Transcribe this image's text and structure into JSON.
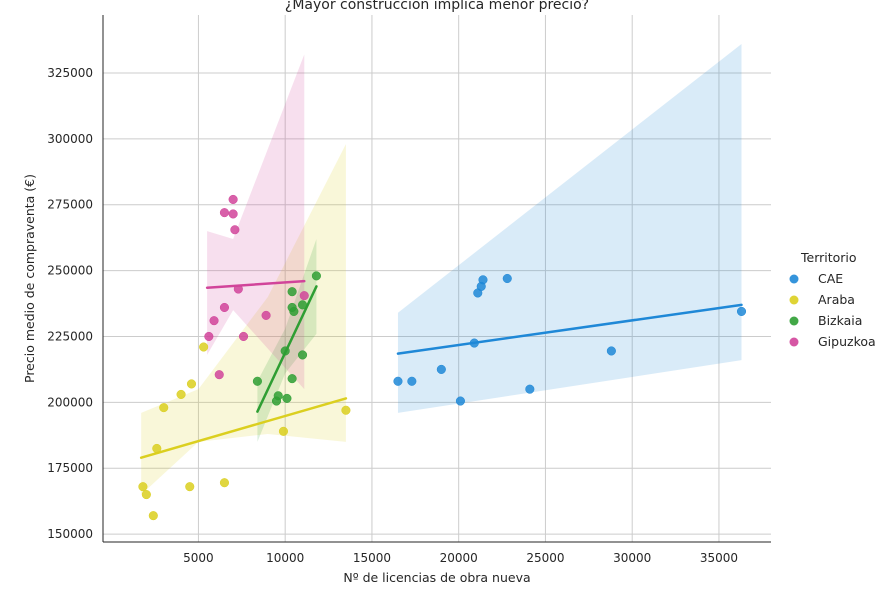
{
  "chart_data": {
    "type": "scatter",
    "title": "¿Mayor construcción implica menor precio?",
    "xlabel": "Nº de licencias de obra nueva",
    "ylabel": "Precio medio de compraventa (€)",
    "xlim": [
      -500,
      38000
    ],
    "ylim": [
      147000,
      347000
    ],
    "xticks": [
      5000,
      10000,
      15000,
      20000,
      25000,
      30000,
      35000
    ],
    "yticks": [
      150000,
      175000,
      200000,
      225000,
      250000,
      275000,
      300000,
      325000
    ],
    "grid": true,
    "legend": {
      "title": "Territorio",
      "placement": "right"
    },
    "series": [
      {
        "name": "CAE",
        "color": "#1f88d7",
        "points": [
          [
            16500,
            208000
          ],
          [
            17300,
            208000
          ],
          [
            19000,
            212500
          ],
          [
            20100,
            200500
          ],
          [
            20900,
            222500
          ],
          [
            21100,
            241500
          ],
          [
            21300,
            244000
          ],
          [
            21400,
            246500
          ],
          [
            22800,
            247000
          ],
          [
            24100,
            205000
          ],
          [
            28800,
            219500
          ],
          [
            36300,
            234500
          ]
        ],
        "trend": [
          [
            16500,
            218500
          ],
          [
            36300,
            237000
          ]
        ],
        "band": {
          "x": [
            16500,
            36300
          ],
          "lower": [
            196000,
            216000
          ],
          "upper": [
            234000,
            336000
          ]
        }
      },
      {
        "name": "Araba",
        "color": "#dbcf1f",
        "points": [
          [
            1800,
            168000
          ],
          [
            2000,
            165000
          ],
          [
            2400,
            157000
          ],
          [
            2600,
            182500
          ],
          [
            3000,
            198000
          ],
          [
            4000,
            203000
          ],
          [
            4500,
            168000
          ],
          [
            4600,
            207000
          ],
          [
            5300,
            221000
          ],
          [
            6500,
            169500
          ],
          [
            9900,
            189000
          ],
          [
            13500,
            197000
          ]
        ],
        "trend": [
          [
            1700,
            179000
          ],
          [
            13500,
            201500
          ]
        ],
        "band": {
          "x": [
            1700,
            5000,
            9000,
            13500
          ],
          "lower": [
            165000,
            185000,
            188000,
            185000
          ],
          "upper": [
            196000,
            205000,
            240000,
            298000
          ]
        }
      },
      {
        "name": "Bizkaia",
        "color": "#2e9e33",
        "points": [
          [
            8400,
            208000
          ],
          [
            9500,
            200500
          ],
          [
            9600,
            202500
          ],
          [
            10000,
            219500
          ],
          [
            10100,
            201500
          ],
          [
            10400,
            242000
          ],
          [
            10400,
            209000
          ],
          [
            10400,
            236000
          ],
          [
            10500,
            234500
          ],
          [
            11000,
            218000
          ],
          [
            11000,
            237000
          ],
          [
            11800,
            248000
          ]
        ],
        "trend": [
          [
            8400,
            196500
          ],
          [
            11800,
            244000
          ]
        ],
        "band": {
          "x": [
            8400,
            10000,
            11800
          ],
          "lower": [
            185000,
            211000,
            226000
          ],
          "upper": [
            208000,
            228000,
            262000
          ]
        }
      },
      {
        "name": "Gipuzkoa",
        "color": "#d1449a",
        "points": [
          [
            5600,
            225000
          ],
          [
            5900,
            231000
          ],
          [
            6200,
            210500
          ],
          [
            6500,
            272000
          ],
          [
            6500,
            236000
          ],
          [
            7000,
            277000
          ],
          [
            7000,
            271500
          ],
          [
            7100,
            265500
          ],
          [
            7300,
            243000
          ],
          [
            7600,
            225000
          ],
          [
            8900,
            233000
          ],
          [
            11100,
            240500
          ]
        ],
        "trend": [
          [
            5500,
            243500
          ],
          [
            11100,
            246000
          ]
        ],
        "band": {
          "x": [
            5500,
            7000,
            11100
          ],
          "lower": [
            218000,
            235000,
            205000
          ],
          "upper": [
            265000,
            262000,
            332000
          ]
        }
      }
    ]
  }
}
